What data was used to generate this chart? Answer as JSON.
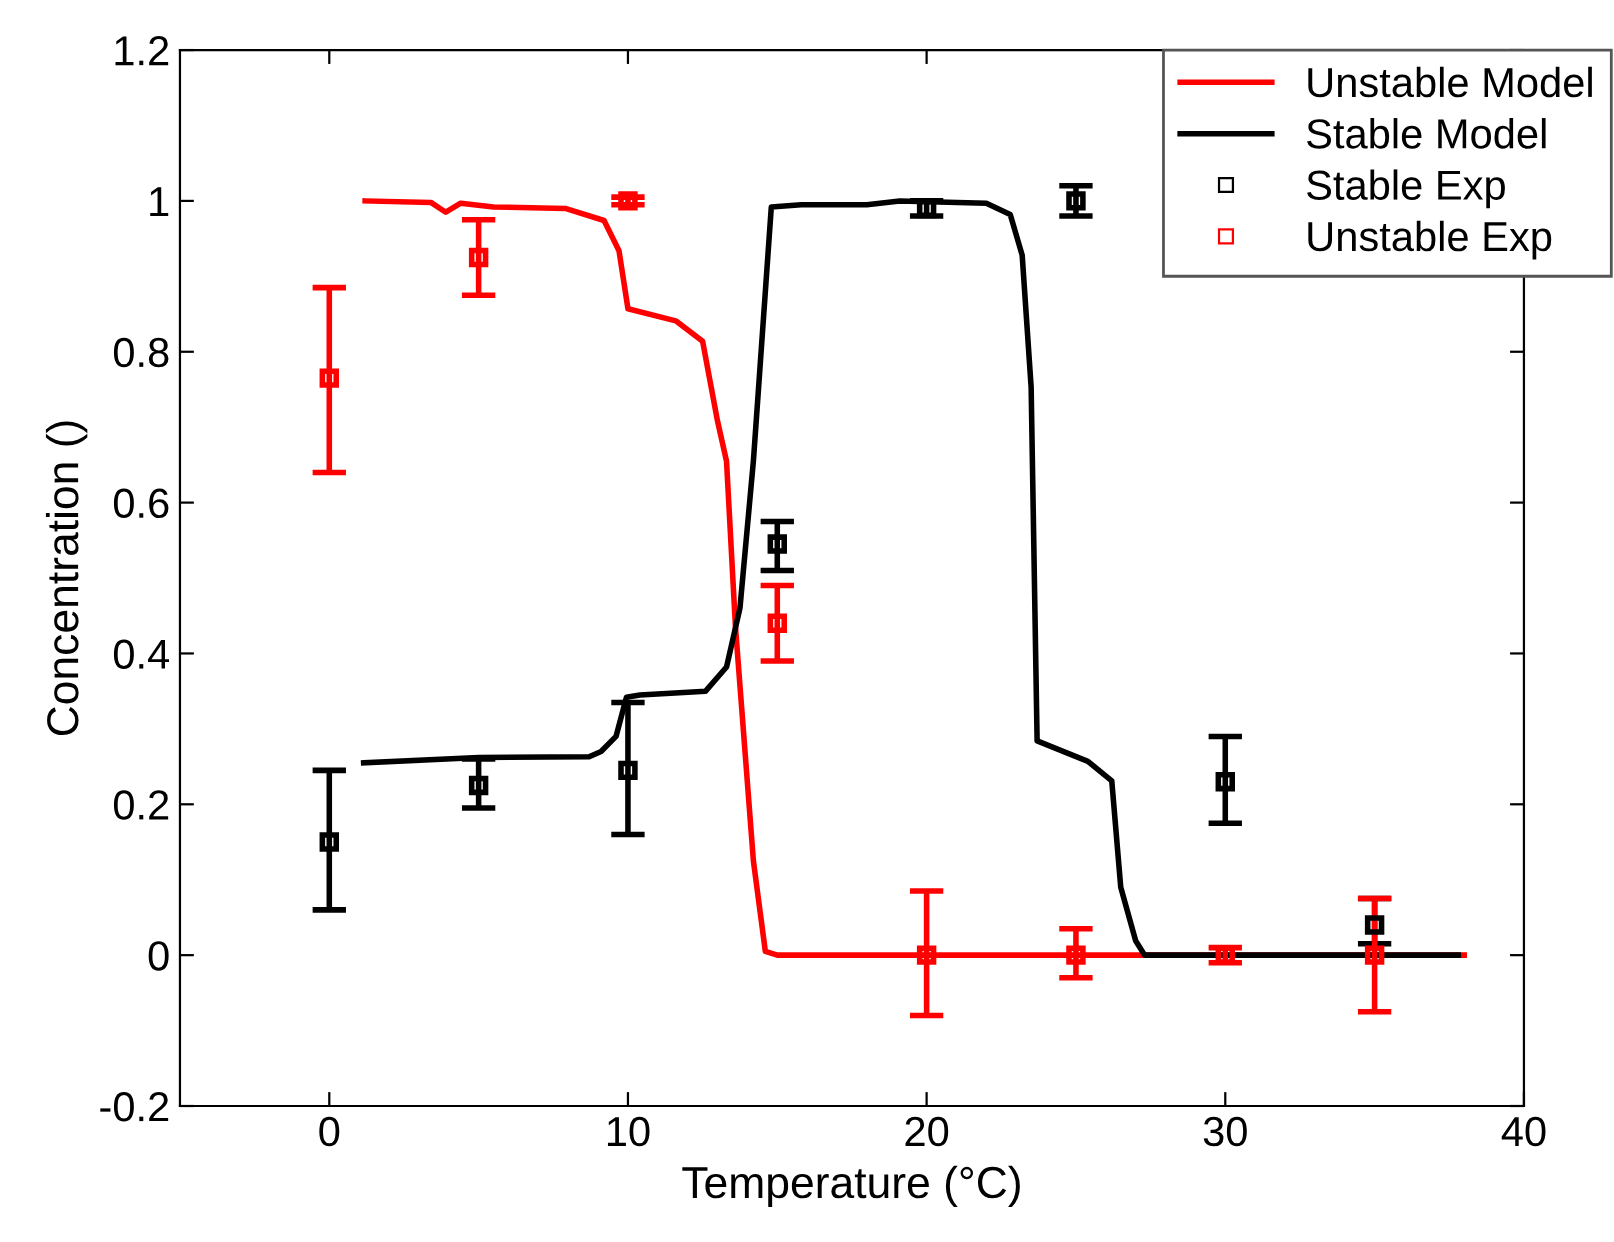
{
  "chart_data": {
    "type": "line",
    "xlabel": "Temperature (°C)",
    "ylabel": "Concentration ()",
    "xlim": [
      -5,
      40
    ],
    "ylim": [
      -0.2,
      1.2
    ],
    "xticks": [
      0,
      10,
      20,
      30,
      40
    ],
    "yticks": [
      -0.2,
      0,
      0.2,
      0.4,
      0.6,
      0.8,
      1,
      1.2
    ],
    "grid": false,
    "legend": "top right",
    "series": [
      {
        "name": "Unstable Model",
        "color": "#ff0000",
        "marker": "none",
        "x": [
          1.2,
          3.4,
          3.9,
          4.4,
          5.5,
          7.9,
          9.2,
          9.7,
          10,
          11.6,
          12.5,
          13,
          13.3,
          13.6,
          14.2,
          14.6,
          15,
          38
        ],
        "values": [
          1.0,
          0.998,
          0.985,
          0.997,
          0.992,
          0.99,
          0.974,
          0.934,
          0.857,
          0.841,
          0.814,
          0.708,
          0.655,
          0.435,
          0.125,
          0.005,
          0,
          0
        ]
      },
      {
        "name": "Stable Model",
        "color": "#000000",
        "marker": "none",
        "x": [
          1.15,
          5,
          8.7,
          9.1,
          9.6,
          9.95,
          10.4,
          12.6,
          13.3,
          13.75,
          14.2,
          14.8,
          15.8,
          18,
          19.1,
          22,
          22.8,
          23.2,
          23.5,
          23.7,
          25.4,
          26.2,
          26.5,
          27,
          27.3,
          37.8
        ],
        "values": [
          0.255,
          0.262,
          0.263,
          0.27,
          0.29,
          0.342,
          0.345,
          0.35,
          0.382,
          0.46,
          0.655,
          0.992,
          0.995,
          0.995,
          1.0,
          0.997,
          0.982,
          0.928,
          0.753,
          0.284,
          0.257,
          0.231,
          0.09,
          0.019,
          0,
          0
        ]
      },
      {
        "name": "Stable Exp",
        "type": "scatter",
        "color": "#000000",
        "marker": "square",
        "x": [
          0,
          5,
          10,
          15,
          20,
          25,
          30,
          35
        ],
        "values": [
          0.15,
          0.225,
          0.245,
          0.545,
          0.99,
          1.0,
          0.23,
          0.04
        ],
        "errors": [
          [
            0.06,
            0.245
          ],
          [
            0.195,
            0.26
          ],
          [
            0.16,
            0.335
          ],
          [
            0.51,
            0.575
          ],
          [
            0.98,
            1.0
          ],
          [
            0.98,
            1.02
          ],
          [
            0.175,
            0.29
          ],
          [
            0.015,
            0.075
          ]
        ]
      },
      {
        "name": "Unstable Exp",
        "type": "scatter",
        "color": "#ff0000",
        "marker": "square",
        "x": [
          0,
          5,
          10,
          15,
          20,
          25,
          30,
          35
        ],
        "values": [
          0.765,
          0.925,
          1.0,
          0.44,
          0,
          0,
          0,
          0
        ],
        "errors": [
          [
            0.64,
            0.885
          ],
          [
            0.875,
            0.975
          ],
          [
            0.995,
            1.005
          ],
          [
            0.39,
            0.49
          ],
          [
            -0.08,
            0.085
          ],
          [
            -0.03,
            0.035
          ],
          [
            -0.01,
            0.01
          ],
          [
            -0.075,
            0.075
          ]
        ]
      }
    ]
  }
}
